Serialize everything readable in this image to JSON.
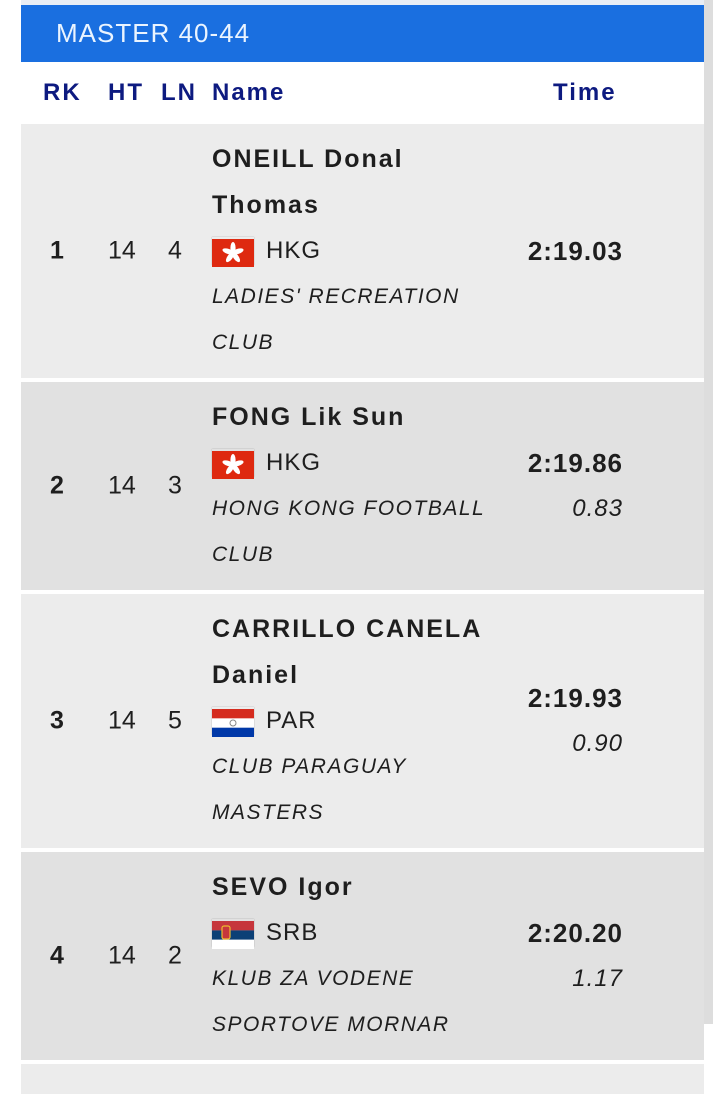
{
  "header": {
    "title": "MASTER 40-44"
  },
  "columns": {
    "rk": "RK",
    "ht": "HT",
    "ln": "LN",
    "name": "Name",
    "time": "Time"
  },
  "results": [
    {
      "rk": "1",
      "ht": "14",
      "ln": "4",
      "name": [
        "ONEILL Donal",
        "Thomas"
      ],
      "country": "HKG",
      "flag": "hong-kong-flag",
      "club": [
        "LADIES' RECREATION",
        "CLUB"
      ],
      "time": "2:19.03",
      "diff": ""
    },
    {
      "rk": "2",
      "ht": "14",
      "ln": "3",
      "name": [
        "FONG Lik Sun"
      ],
      "country": "HKG",
      "flag": "hong-kong-flag",
      "club": [
        "HONG KONG FOOTBALL",
        "CLUB"
      ],
      "time": "2:19.86",
      "diff": "0.83"
    },
    {
      "rk": "3",
      "ht": "14",
      "ln": "5",
      "name": [
        "CARRILLO CANELA",
        "Daniel"
      ],
      "country": "PAR",
      "flag": "paraguay-flag",
      "club": [
        "CLUB PARAGUAY",
        "MASTERS"
      ],
      "time": "2:19.93",
      "diff": "0.90"
    },
    {
      "rk": "4",
      "ht": "14",
      "ln": "2",
      "name": [
        "SEVO Igor"
      ],
      "country": "SRB",
      "flag": "serbia-flag",
      "club": [
        "KLUB ZA VODENE",
        "SPORTOVE MORNAR"
      ],
      "time": "2:20.20",
      "diff": "1.17"
    }
  ],
  "colors": {
    "banner": "#1a6fe0",
    "header_text": "#0d1a80"
  }
}
